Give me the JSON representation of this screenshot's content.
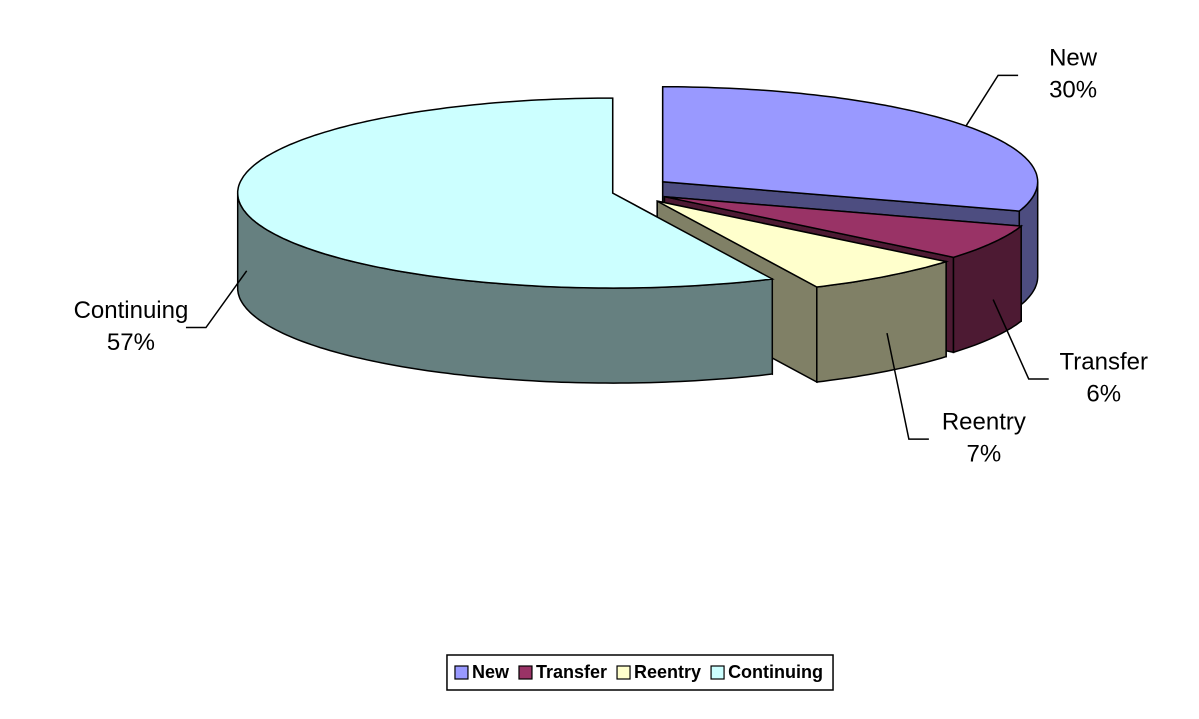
{
  "chart_data": {
    "type": "pie",
    "categories": [
      "New",
      "Transfer",
      "Reentry",
      "Continuing"
    ],
    "values": [
      30,
      6,
      7,
      57
    ],
    "value_labels": [
      "30%",
      "6%",
      "7%",
      "57%"
    ],
    "colors": [
      "#9999ff",
      "#993366",
      "#ffffcc",
      "#ccffff"
    ],
    "legend": "bottom"
  }
}
